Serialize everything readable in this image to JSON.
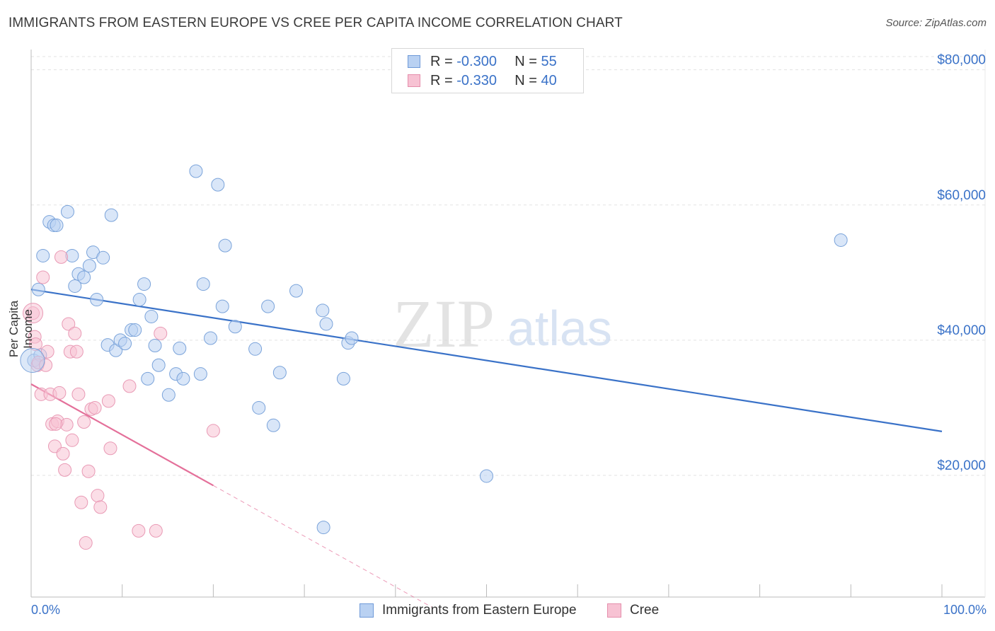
{
  "title": "IMMIGRANTS FROM EASTERN EUROPE VS CREE PER CAPITA INCOME CORRELATION CHART",
  "source": "Source: ZipAtlas.com",
  "watermark": {
    "zip": "ZIP",
    "atlas": "atlas"
  },
  "legend": {
    "rows": [
      {
        "r_label": "R =",
        "r_value": "-0.300",
        "n_label": "N =",
        "n_value": "55"
      },
      {
        "r_label": "R =",
        "r_value": "-0.330",
        "n_label": "N =",
        "n_value": "40"
      }
    ]
  },
  "bottom_legend": [
    "Immigrants from Eastern Europe",
    "Cree"
  ],
  "x_axis": {
    "min_label": "0.0%",
    "max_label": "100.0%"
  },
  "y_axis": {
    "label": "Per Capita Income",
    "ticks": [
      "$20,000",
      "$40,000",
      "$60,000",
      "$80,000"
    ]
  },
  "colors": {
    "blue": "#3a72c8",
    "blue_fill": "#b9d1f2",
    "pink": "#e4709a",
    "pink_fill": "#f7c2d3"
  },
  "chart_data": {
    "type": "scatter",
    "xlim": [
      0,
      100
    ],
    "ylim": [
      2000,
      83000
    ],
    "y_ticks": [
      20000,
      40000,
      60000,
      80000
    ],
    "series": [
      {
        "name": "Immigrants from Eastern Europe",
        "color": "#3a72c8",
        "points": [
          [
            0.3,
            37000
          ],
          [
            0.8,
            47500
          ],
          [
            1.3,
            52500
          ],
          [
            2.0,
            57500
          ],
          [
            2.5,
            57000
          ],
          [
            2.8,
            57000
          ],
          [
            4.0,
            59000
          ],
          [
            4.5,
            52500
          ],
          [
            4.8,
            48000
          ],
          [
            5.2,
            49800
          ],
          [
            5.8,
            49300
          ],
          [
            6.4,
            51000
          ],
          [
            6.8,
            53000
          ],
          [
            7.2,
            46000
          ],
          [
            7.9,
            52200
          ],
          [
            8.4,
            39300
          ],
          [
            8.8,
            58500
          ],
          [
            9.3,
            38500
          ],
          [
            9.8,
            40000
          ],
          [
            10.3,
            39500
          ],
          [
            11.0,
            41500
          ],
          [
            11.4,
            41500
          ],
          [
            11.9,
            46000
          ],
          [
            12.4,
            48300
          ],
          [
            12.8,
            34300
          ],
          [
            13.2,
            43500
          ],
          [
            13.6,
            39200
          ],
          [
            14.0,
            36300
          ],
          [
            15.1,
            31900
          ],
          [
            15.9,
            35000
          ],
          [
            16.3,
            38800
          ],
          [
            16.7,
            34300
          ],
          [
            18.1,
            65000
          ],
          [
            18.6,
            35000
          ],
          [
            18.9,
            48300
          ],
          [
            19.7,
            40300
          ],
          [
            20.5,
            63000
          ],
          [
            21.0,
            45000
          ],
          [
            21.3,
            54000
          ],
          [
            22.4,
            42000
          ],
          [
            24.6,
            38700
          ],
          [
            25.0,
            30000
          ],
          [
            26.0,
            45000
          ],
          [
            26.6,
            27400
          ],
          [
            27.3,
            35200
          ],
          [
            29.1,
            47300
          ],
          [
            32.0,
            44400
          ],
          [
            32.4,
            42400
          ],
          [
            34.3,
            34300
          ],
          [
            34.8,
            39600
          ],
          [
            35.2,
            40300
          ],
          [
            32.1,
            12300
          ],
          [
            50.0,
            19900
          ],
          [
            88.9,
            54800
          ],
          [
            1.0,
            37800
          ]
        ],
        "trend": {
          "x": [
            0,
            100
          ],
          "y": [
            47500,
            26500
          ]
        }
      },
      {
        "name": "Cree",
        "color": "#e4709a",
        "points": [
          [
            0.2,
            44000
          ],
          [
            0.4,
            40500
          ],
          [
            0.5,
            39400
          ],
          [
            0.7,
            36300
          ],
          [
            0.8,
            36700
          ],
          [
            1.1,
            32000
          ],
          [
            1.3,
            49300
          ],
          [
            1.6,
            36300
          ],
          [
            1.8,
            38300
          ],
          [
            2.1,
            32000
          ],
          [
            2.3,
            27600
          ],
          [
            2.6,
            24300
          ],
          [
            2.9,
            28000
          ],
          [
            3.1,
            32200
          ],
          [
            3.3,
            52300
          ],
          [
            3.5,
            23200
          ],
          [
            3.7,
            20800
          ],
          [
            3.9,
            27500
          ],
          [
            4.1,
            42400
          ],
          [
            4.3,
            38300
          ],
          [
            4.5,
            25200
          ],
          [
            4.8,
            41000
          ],
          [
            5.0,
            38300
          ],
          [
            5.2,
            32000
          ],
          [
            5.5,
            16000
          ],
          [
            5.8,
            27900
          ],
          [
            6.0,
            10000
          ],
          [
            6.3,
            20600
          ],
          [
            6.6,
            29800
          ],
          [
            7.0,
            30000
          ],
          [
            7.3,
            17000
          ],
          [
            7.6,
            15300
          ],
          [
            8.5,
            31000
          ],
          [
            8.7,
            24000
          ],
          [
            10.8,
            33200
          ],
          [
            11.8,
            11800
          ],
          [
            13.7,
            11800
          ],
          [
            14.2,
            41000
          ],
          [
            20.0,
            26600
          ],
          [
            2.7,
            27600
          ]
        ],
        "trend": {
          "x": [
            0,
            20
          ],
          "y": [
            33500,
            18500
          ]
        },
        "trend_dashed": {
          "x": [
            20,
            44
          ],
          "y": [
            18500,
            500
          ]
        }
      }
    ]
  }
}
